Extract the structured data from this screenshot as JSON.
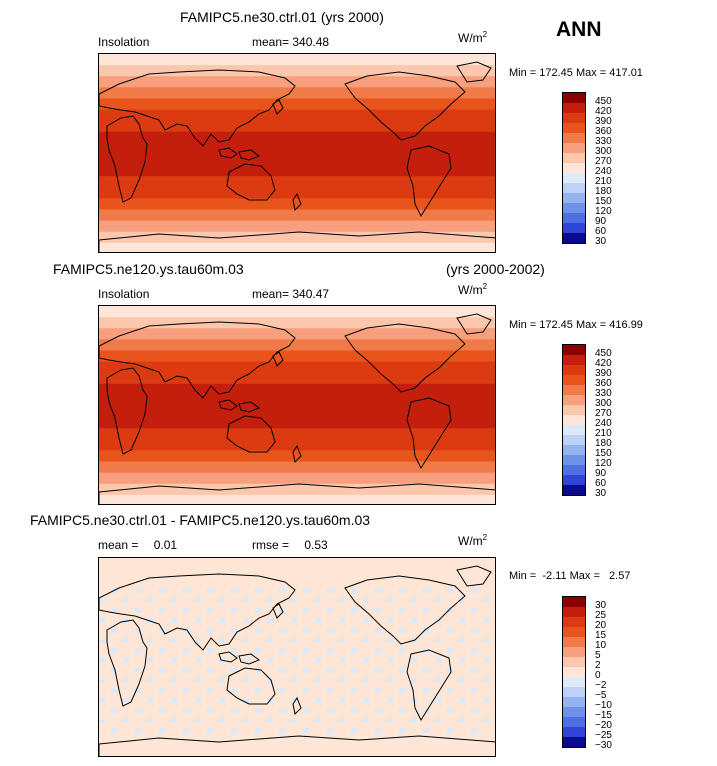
{
  "season": "ANN",
  "unit_prefix": "W/m",
  "unit_exp": "2",
  "panels": [
    {
      "title_left": "FAMIPC5.ne30.ctrl.01 (yrs 2000)",
      "title_right": "",
      "label_a": "Insolation",
      "label_b": "mean=",
      "label_b_val": "340.48",
      "minmax": "Min = 172.45 Max = 417.01",
      "levels": [
        "450",
        "420",
        "390",
        "360",
        "330",
        "300",
        "270",
        "240",
        "210",
        "180",
        "150",
        "120",
        "90",
        "60",
        "30"
      ]
    },
    {
      "title_left": "FAMIPC5.ne120.ys.tau60m.03",
      "title_right": "(yrs 2000-2002)",
      "label_a": "Insolation",
      "label_b": "mean=",
      "label_b_val": "340.47",
      "minmax": "Min = 172.45 Max = 416.99",
      "levels": [
        "450",
        "420",
        "390",
        "360",
        "330",
        "300",
        "270",
        "240",
        "210",
        "180",
        "150",
        "120",
        "90",
        "60",
        "30"
      ]
    },
    {
      "title_left": "FAMIPC5.ne30.ctrl.01 - FAMIPC5.ne120.ys.tau60m.03",
      "title_right": "",
      "label_a": "mean =",
      "label_a_val": "0.01",
      "label_b": "rmse =",
      "label_b_val": "0.53",
      "minmax": "Min =  -2.11 Max =   2.57",
      "levels": [
        "30",
        "25",
        "20",
        "15",
        "10",
        "5",
        "2",
        "0",
        "−2",
        "−5",
        "−10",
        "−15",
        "−20",
        "−25",
        "−30"
      ]
    }
  ],
  "colors": {
    "scale": [
      "#8b0000",
      "#c41e0c",
      "#dc3b12",
      "#e8541c",
      "#f07a48",
      "#f8a07e",
      "#fbc8ae",
      "#fde6d8",
      "#ddeafa",
      "#bcd2f6",
      "#94b4f0",
      "#6e92ea",
      "#4f6fe4",
      "#2e45d6",
      "#0a0a8c"
    ],
    "diff_light_orange": "#fde6d5",
    "diff_light_blue": "#dbe8f8"
  },
  "map_stats": {
    "insolation_rows": [
      7,
      8,
      9,
      10,
      11,
      12,
      12,
      13,
      13,
      13,
      13,
      12,
      12,
      11,
      10,
      9,
      8,
      7
    ]
  }
}
